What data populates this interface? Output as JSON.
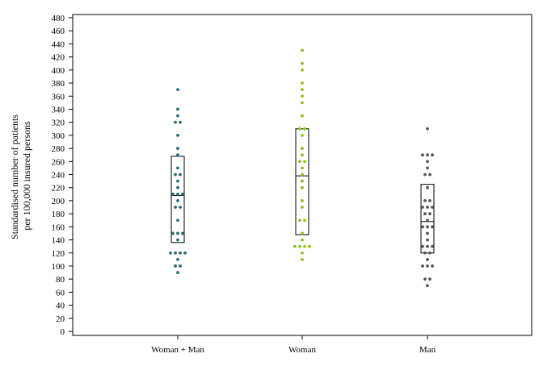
{
  "chart_data": {
    "type": "scatter",
    "title": "",
    "xlabel": "",
    "ylabel_lines": [
      "Standardised number of patients",
      "per 100,000 insured persons"
    ],
    "ylim": [
      0,
      480
    ],
    "ytick_step": 20,
    "grid": false,
    "legend": "none",
    "categories": [
      "Woman + Man",
      "Woman",
      "Man"
    ],
    "series": [
      {
        "category": "Woman + Man",
        "color": "#2a6b74",
        "box": {
          "q1": 136,
          "median": 208,
          "q3": 268
        },
        "points": [
          370,
          340,
          330,
          320,
          320,
          300,
          280,
          270,
          250,
          240,
          240,
          230,
          220,
          210,
          210,
          210,
          200,
          190,
          190,
          170,
          150,
          150,
          150,
          140,
          120,
          120,
          120,
          120,
          110,
          100,
          100,
          90
        ]
      },
      {
        "category": "Woman",
        "color": "#8cc21e",
        "box": {
          "q1": 148,
          "median": 238,
          "q3": 310
        },
        "points": [
          430,
          410,
          400,
          380,
          370,
          360,
          350,
          330,
          310,
          310,
          300,
          280,
          270,
          260,
          260,
          250,
          240,
          230,
          220,
          200,
          190,
          170,
          170,
          150,
          140,
          130,
          130,
          130,
          130,
          120,
          110
        ]
      },
      {
        "category": "Man",
        "color": "#555555",
        "box": {
          "q1": 120,
          "median": 168,
          "q3": 225
        },
        "points": [
          310,
          270,
          270,
          270,
          260,
          250,
          240,
          240,
          220,
          200,
          200,
          190,
          190,
          190,
          180,
          180,
          170,
          160,
          160,
          160,
          150,
          140,
          130,
          130,
          130,
          120,
          120,
          110,
          100,
          100,
          100,
          80,
          80,
          70
        ]
      }
    ]
  }
}
